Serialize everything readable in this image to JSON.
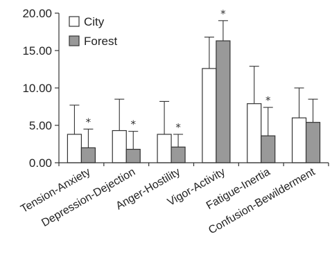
{
  "chart_data": {
    "type": "bar",
    "title": "",
    "xlabel": "",
    "ylabel": "",
    "ylim": [
      0,
      20
    ],
    "yticks": [
      "0.00",
      "5.00",
      "10.00",
      "15.00",
      "20.00"
    ],
    "grid": false,
    "legend_position": "top-left",
    "categories": [
      "Tension-Anxiety",
      "Depression-Dejection",
      "Anger-Hostility",
      "Vigor-Activity",
      "Fatigue-Inertia",
      "Confusion-Bewilderment"
    ],
    "series": [
      {
        "name": "City",
        "color": "#ffffff",
        "values": [
          3.8,
          4.3,
          3.8,
          12.6,
          7.9,
          6.0
        ],
        "errors": [
          3.9,
          4.2,
          4.4,
          4.2,
          5.0,
          4.0
        ]
      },
      {
        "name": "Forest",
        "color": "#999999",
        "values": [
          2.0,
          1.8,
          2.1,
          16.3,
          3.6,
          5.4
        ],
        "errors": [
          2.5,
          2.4,
          1.7,
          2.7,
          3.8,
          3.1
        ]
      }
    ],
    "significance_marker": "*",
    "significant": [
      true,
      true,
      true,
      true,
      true,
      false
    ]
  }
}
